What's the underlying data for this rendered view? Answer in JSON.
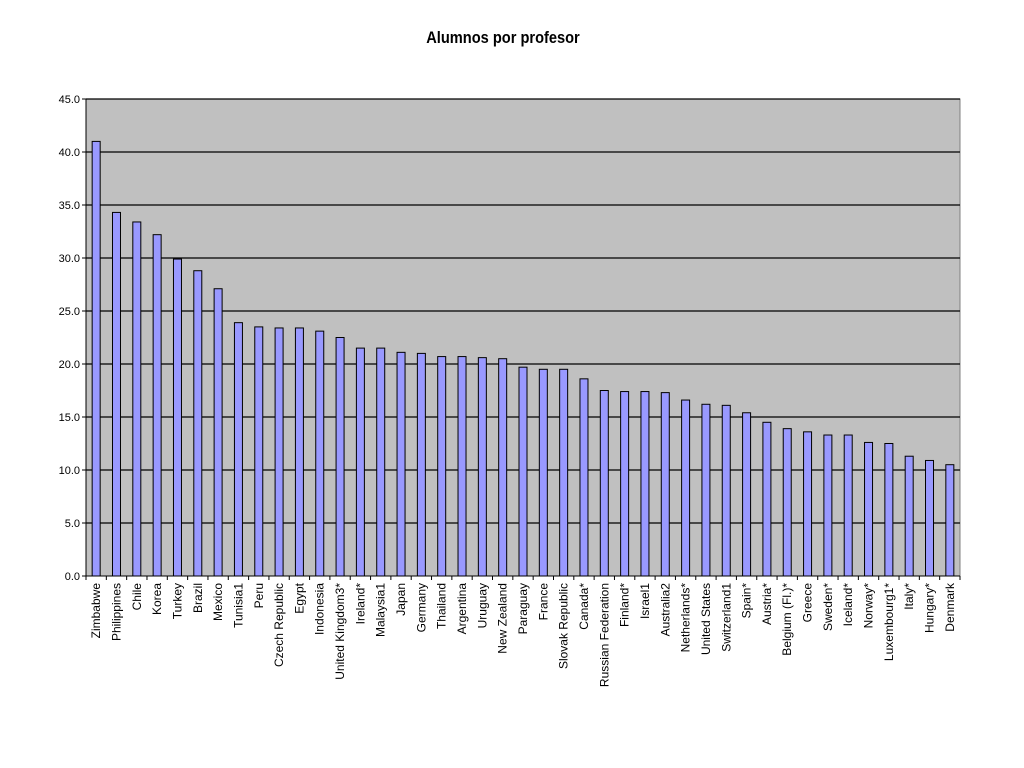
{
  "chart_data": {
    "type": "bar",
    "title": "Alumnos por profesor",
    "xlabel": "",
    "ylabel": "",
    "ylim": [
      0,
      45
    ],
    "yticks": [
      "0.0",
      "5.0",
      "10.0",
      "15.0",
      "20.0",
      "25.0",
      "30.0",
      "35.0",
      "40.0",
      "45.0"
    ],
    "grid": true,
    "legend": "none",
    "colors": {
      "plot_bg": "#c0c0c0",
      "bar_fill": "#9999ff",
      "bar_stroke": "#000000",
      "grid": "#000000"
    },
    "categories": [
      "Zimbabwe",
      "Philippines",
      "Chile",
      "Korea",
      "Turkey",
      "Brazil",
      "Mexico",
      "Tunisia1",
      "Peru",
      "Czech Republic",
      "Egypt",
      "Indonesia",
      "United Kingdom3*",
      "Ireland*",
      "Malaysia1",
      "Japan",
      "Germany",
      "Thailand",
      "Argentina",
      "Uruguay",
      "New Zealand",
      "Paraguay",
      "France",
      "Slovak Republic",
      "Canada*",
      "Russian Federation",
      "Finland*",
      "Israel1",
      "Australia2",
      "Netherlands*",
      "United States",
      "Switzerland1",
      "Spain*",
      "Austria*",
      "Belgium (Fl.)*",
      "Greece",
      "Sweden*",
      "Iceland*",
      "Norway*",
      "Luxembourg1*",
      "Italy*",
      "Hungary*",
      "Denmark"
    ],
    "values": [
      41.0,
      34.3,
      33.4,
      32.2,
      29.9,
      28.8,
      27.1,
      23.9,
      23.5,
      23.4,
      23.4,
      23.1,
      22.5,
      21.5,
      21.5,
      21.1,
      21.0,
      20.7,
      20.7,
      20.6,
      20.5,
      19.7,
      19.5,
      19.5,
      18.6,
      17.5,
      17.4,
      17.4,
      17.3,
      16.6,
      16.2,
      16.1,
      15.4,
      14.5,
      13.9,
      13.6,
      13.3,
      13.3,
      12.6,
      12.5,
      11.3,
      10.9,
      10.5
    ]
  }
}
